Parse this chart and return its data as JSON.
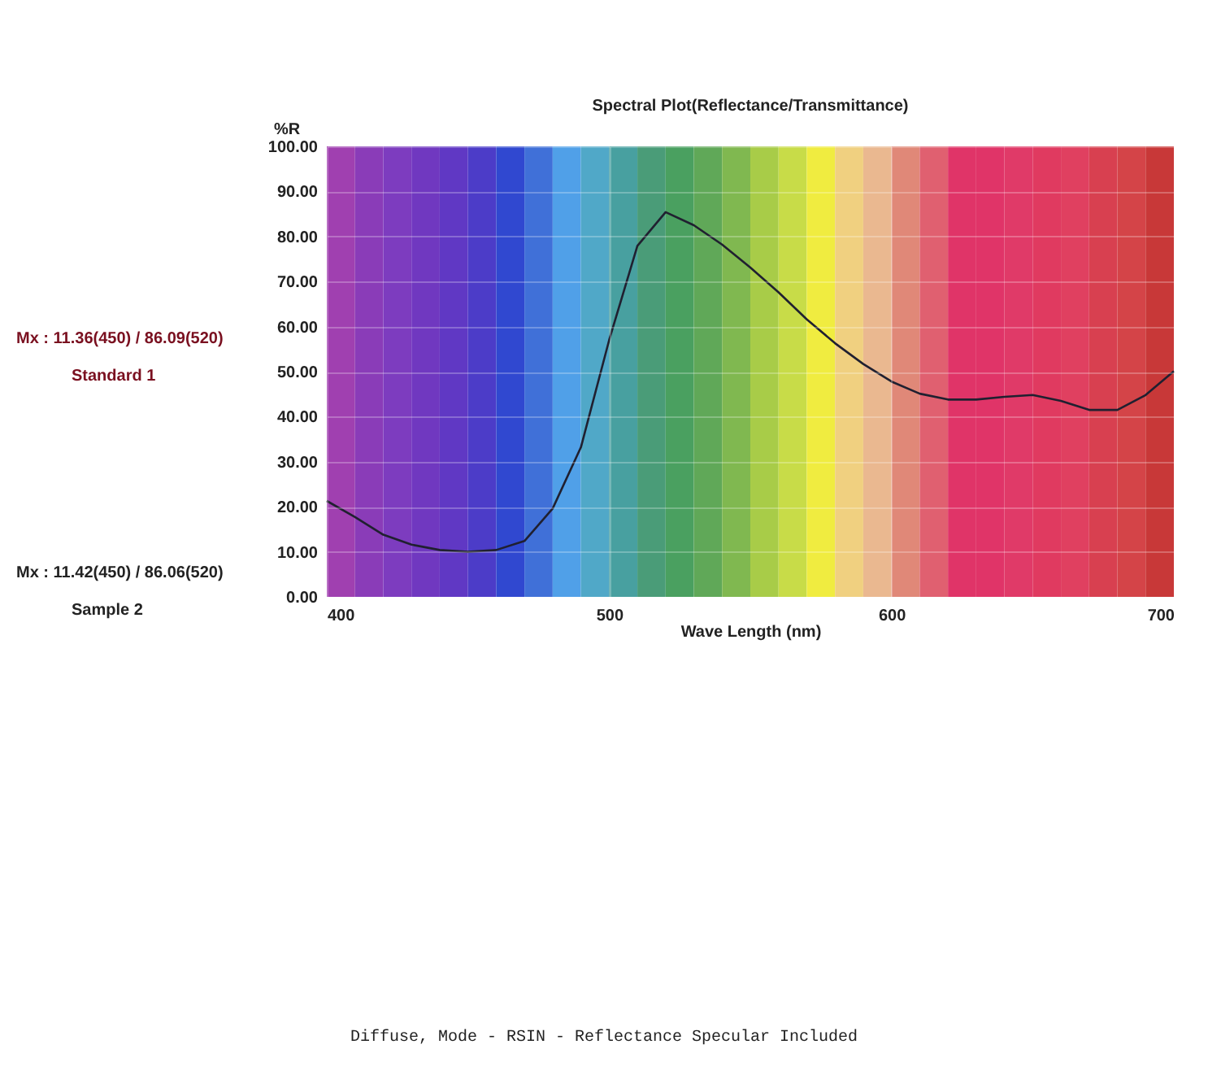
{
  "chart_data": {
    "type": "line",
    "title": "Spectral Plot(Reflectance/Transmittance)",
    "xlabel": "Wave Length (nm)",
    "ylabel": "%R",
    "x": [
      400,
      410,
      420,
      430,
      440,
      450,
      460,
      470,
      480,
      490,
      500,
      510,
      520,
      530,
      540,
      550,
      560,
      570,
      580,
      590,
      600,
      610,
      620,
      630,
      640,
      650,
      660,
      670,
      680,
      690,
      700
    ],
    "series": [
      {
        "color": "#202030",
        "values": [
          21.3,
          17.7,
          13.8,
          11.6,
          10.4,
          10,
          10.4,
          12.4,
          19.6,
          33.2,
          57,
          77.9,
          85.4,
          82.5,
          78.2,
          73.1,
          67.6,
          61.6,
          56.3,
          51.7,
          47.8,
          45.1,
          43.8,
          43.8,
          44.4,
          44.8,
          43.5,
          41.5,
          41.5,
          44.8,
          50.1
        ]
      }
    ],
    "xlim": [
      400,
      700
    ],
    "ylim": [
      0,
      100
    ],
    "xticks": [
      400,
      500,
      600,
      700
    ],
    "yticks": [
      {
        "value": 0,
        "label": "0.00"
      },
      {
        "value": 10,
        "label": "10.00"
      },
      {
        "value": 20,
        "label": "20.00"
      },
      {
        "value": 30,
        "label": "30.00"
      },
      {
        "value": 40,
        "label": "40.00"
      },
      {
        "value": 50,
        "label": "50.00"
      },
      {
        "value": 60,
        "label": "60.00"
      },
      {
        "value": 70,
        "label": "70.00"
      },
      {
        "value": 80,
        "label": "80.00"
      },
      {
        "value": 90,
        "label": "90.00"
      },
      {
        "value": 100,
        "label": "100.00"
      }
    ],
    "grid": true,
    "bands": [
      {
        "axis": "x",
        "from": 400,
        "to": 410,
        "color": "#a040b0"
      },
      {
        "axis": "x",
        "from": 410,
        "to": 420,
        "color": "#8a3cb8"
      },
      {
        "axis": "x",
        "from": 420,
        "to": 430,
        "color": "#7d3cbf"
      },
      {
        "axis": "x",
        "from": 430,
        "to": 440,
        "color": "#7038c0"
      },
      {
        "axis": "x",
        "from": 440,
        "to": 450,
        "color": "#6038c4"
      },
      {
        "axis": "x",
        "from": 450,
        "to": 460,
        "color": "#4c3cc8"
      },
      {
        "axis": "x",
        "from": 460,
        "to": 470,
        "color": "#3048d0"
      },
      {
        "axis": "x",
        "from": 470,
        "to": 480,
        "color": "#4070d8"
      },
      {
        "axis": "x",
        "from": 480,
        "to": 490,
        "color": "#50a0e8"
      },
      {
        "axis": "x",
        "from": 490,
        "to": 500,
        "color": "#50a8c8"
      },
      {
        "axis": "x",
        "from": 500,
        "to": 510,
        "color": "#48a0a0"
      },
      {
        "axis": "x",
        "from": 510,
        "to": 520,
        "color": "#4a9c78"
      },
      {
        "axis": "x",
        "from": 520,
        "to": 530,
        "color": "#4aa060"
      },
      {
        "axis": "x",
        "from": 530,
        "to": 540,
        "color": "#60a858"
      },
      {
        "axis": "x",
        "from": 540,
        "to": 550,
        "color": "#80b850"
      },
      {
        "axis": "x",
        "from": 550,
        "to": 560,
        "color": "#a8cc48"
      },
      {
        "axis": "x",
        "from": 560,
        "to": 570,
        "color": "#c8dc48"
      },
      {
        "axis": "x",
        "from": 570,
        "to": 580,
        "color": "#f0ec40"
      },
      {
        "axis": "x",
        "from": 580,
        "to": 590,
        "color": "#f0d080"
      },
      {
        "axis": "x",
        "from": 590,
        "to": 600,
        "color": "#eab890"
      },
      {
        "axis": "x",
        "from": 600,
        "to": 610,
        "color": "#e08878"
      },
      {
        "axis": "x",
        "from": 610,
        "to": 620,
        "color": "#e06070"
      },
      {
        "axis": "x",
        "from": 620,
        "to": 630,
        "color": "#e03468"
      },
      {
        "axis": "x",
        "from": 630,
        "to": 640,
        "color": "#e03468"
      },
      {
        "axis": "x",
        "from": 640,
        "to": 650,
        "color": "#e03a68"
      },
      {
        "axis": "x",
        "from": 650,
        "to": 660,
        "color": "#e03a60"
      },
      {
        "axis": "x",
        "from": 660,
        "to": 670,
        "color": "#e04060"
      },
      {
        "axis": "x",
        "from": 670,
        "to": 680,
        "color": "#d84050"
      },
      {
        "axis": "x",
        "from": 680,
        "to": 690,
        "color": "#d44448"
      },
      {
        "axis": "x",
        "from": 690,
        "to": 700,
        "color": "#c83838"
      }
    ],
    "annotations": [
      "Mx : 11.36(450) / 86.09(520)",
      "Standard 1",
      "Mx : 11.42(450) / 86.06(520)",
      "Sample 2",
      "Diffuse, Mode - RSIN - Reflectance Specular Included"
    ]
  }
}
